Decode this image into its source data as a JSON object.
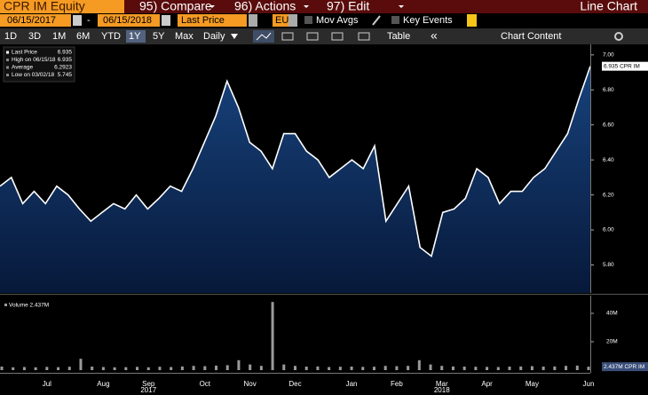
{
  "toolbar": {
    "ticker": "CPR IM Equity",
    "menus": [
      "95) Compare",
      "96) Actions",
      "97) Edit"
    ],
    "view": "Line Chart",
    "start_date": "06/15/2017",
    "date_sep": "-",
    "end_date": "06/15/2018",
    "field": "Last Price",
    "currency": "EUR",
    "mov_avgs": "Mov Avgs",
    "key_events": "Key Events",
    "ranges": [
      "1D",
      "3D",
      "1M",
      "6M",
      "YTD",
      "1Y",
      "5Y",
      "Max"
    ],
    "active_range": 5,
    "frequency": "Daily",
    "table": "Table",
    "collapse": "«",
    "chart_content": "Chart Content"
  },
  "chart_data": [
    {
      "type": "area",
      "legend": [
        "Last Price",
        "High on 06/15/18",
        "Average",
        "Low on 03/02/18"
      ],
      "legend_values": [
        6.935,
        6.935,
        6.2923,
        5.745
      ],
      "last_tag": "6.935 CPR IM",
      "color": "#ffffff",
      "fill": "#0e2f5e",
      "values": [
        6.25,
        6.3,
        6.15,
        6.22,
        6.15,
        6.25,
        6.2,
        6.12,
        6.05,
        6.1,
        6.15,
        6.12,
        6.2,
        6.12,
        6.18,
        6.25,
        6.22,
        6.35,
        6.5,
        6.65,
        6.85,
        6.7,
        6.5,
        6.45,
        6.35,
        6.55,
        6.55,
        6.45,
        6.4,
        6.3,
        6.35,
        6.4,
        6.35,
        6.48,
        6.05,
        6.15,
        6.25,
        5.9,
        5.85,
        6.1,
        6.12,
        6.18,
        6.35,
        6.3,
        6.15,
        6.22,
        6.22,
        6.3,
        6.35,
        6.45,
        6.55,
        6.75,
        6.935
      ],
      "ylim": [
        5.64,
        7.06
      ],
      "yticks": [
        {
          "value": 5.8,
          "label": "5.80"
        },
        {
          "value": 6.0,
          "label": "6.00"
        },
        {
          "value": 6.2,
          "label": "6.20"
        },
        {
          "value": 6.4,
          "label": "6.40"
        },
        {
          "value": 6.6,
          "label": "6.60"
        },
        {
          "value": 6.8,
          "label": "6.80"
        },
        {
          "value": 7.0,
          "label": "7.00"
        }
      ]
    },
    {
      "type": "bar",
      "legend": "Volume 2.437M",
      "last_tag": "2.437M CPR IM",
      "color": "#9a9a9a",
      "categories": [
        null,
        null,
        null,
        null,
        "Jul",
        null,
        null,
        null,
        null,
        "Aug",
        null,
        null,
        null,
        "Sep",
        null,
        null,
        null,
        null,
        "Oct",
        null,
        null,
        null,
        "Nov",
        null,
        null,
        null,
        "Dec",
        null,
        null,
        null,
        null,
        "Jan",
        null,
        null,
        null,
        "Feb",
        null,
        null,
        null,
        "Mar",
        null,
        null,
        null,
        "Apr",
        null,
        null,
        null,
        "May",
        null,
        null,
        null,
        null,
        "Jun"
      ],
      "years": [
        null,
        null,
        null,
        null,
        null,
        null,
        null,
        null,
        null,
        null,
        null,
        null,
        null,
        "2017",
        null,
        null,
        null,
        null,
        null,
        null,
        null,
        null,
        null,
        null,
        null,
        null,
        null,
        null,
        null,
        null,
        null,
        null,
        null,
        null,
        null,
        null,
        null,
        null,
        null,
        "2018",
        null,
        null,
        null,
        null,
        null,
        null,
        null,
        null,
        null,
        null,
        null,
        null,
        null
      ],
      "values": [
        2500000,
        2000000,
        2200000,
        2000000,
        2300000,
        2100000,
        2400000,
        8000000,
        2500000,
        2200000,
        2000000,
        2100000,
        2300000,
        2000000,
        2400000,
        2200000,
        2600000,
        3000000,
        2800000,
        3200000,
        3500000,
        7000000,
        4000000,
        3000000,
        48000000,
        4000000,
        3000000,
        2500000,
        2600000,
        2200000,
        2400000,
        2500000,
        2300000,
        2400000,
        3000000,
        2800000,
        3000000,
        7000000,
        4000000,
        3000000,
        2600000,
        2500000,
        2400000,
        2300000,
        2200000,
        2500000,
        2600000,
        2800000,
        2500000,
        2600000,
        3000000,
        3200000,
        2437000
      ],
      "ylim": [
        0,
        50000000
      ],
      "yticks": [
        {
          "value": 20000000,
          "label": "20M"
        },
        {
          "value": 40000000,
          "label": "40M"
        }
      ]
    }
  ]
}
